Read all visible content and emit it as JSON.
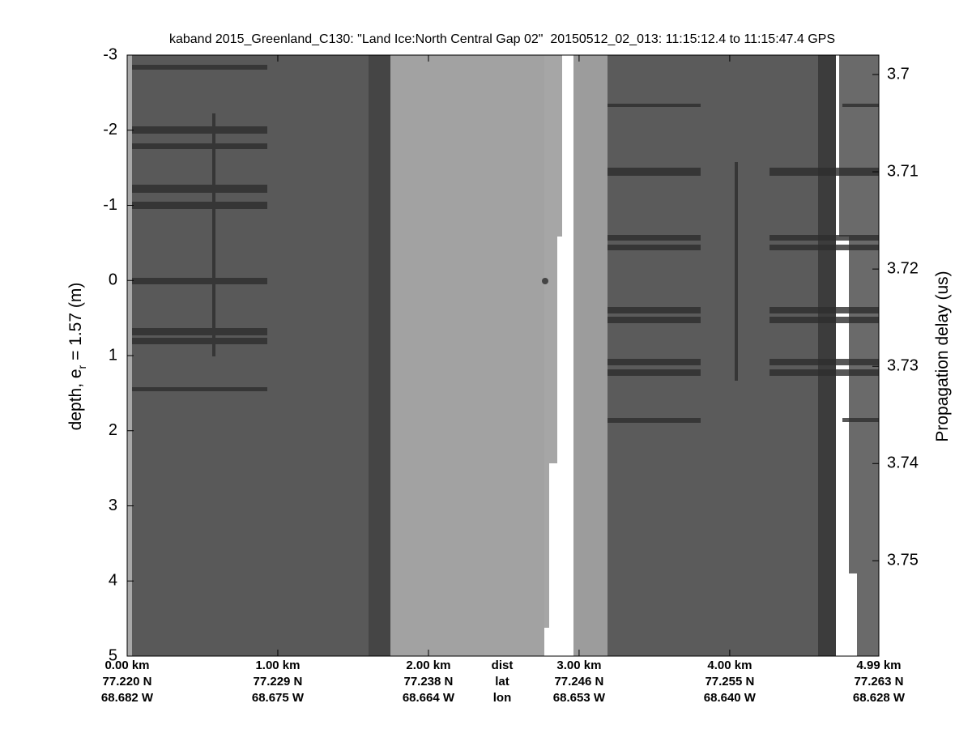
{
  "chart_data": {
    "type": "echogram",
    "title": "kaband 2015_Greenland_C130: \"Land Ice:North Central Gap 02\"  20150512_02_013: 11:15:12.4 to 11:15:47.4 GPS",
    "ylabel": {
      "text": "depth, e",
      "subscript": "r",
      "suffix": " = 1.57 (m)"
    },
    "y2label": "Propagation delay (us)",
    "ylim": [
      -3,
      5
    ],
    "yticks": [
      -3,
      -2,
      -1,
      0,
      1,
      2,
      3,
      4,
      5
    ],
    "y2lim": [
      3.698,
      3.7598
    ],
    "y2ticks": [
      3.7,
      3.71,
      3.72,
      3.73,
      3.74,
      3.75
    ],
    "xlim": [
      0,
      4.99
    ],
    "xticks": [
      {
        "value": 0,
        "label": "0.00 km"
      },
      {
        "value": 1,
        "label": "1.00 km"
      },
      {
        "value": 2,
        "label": "2.00 km"
      },
      {
        "value": 3,
        "label": "3.00 km"
      },
      {
        "value": 4,
        "label": "4.00 km"
      },
      {
        "value": 4.99,
        "label": "4.99 km"
      }
    ],
    "lat_labels": [
      "77.220 N",
      "77.229 N",
      "77.238 N",
      "77.246 N",
      "77.255 N",
      "77.263 N"
    ],
    "lon_labels": [
      "68.682 W",
      "68.675 W",
      "68.664 W",
      "68.653 W",
      "68.640 W",
      "68.628 W"
    ],
    "row_labels": [
      "dist",
      "lat",
      "lon"
    ]
  }
}
